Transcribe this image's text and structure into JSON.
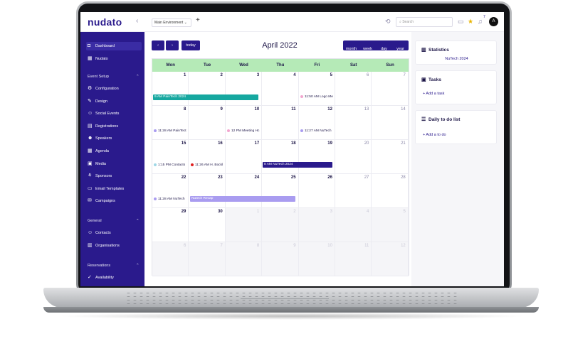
{
  "app": {
    "logo": "nudato",
    "environment": "Main Environment",
    "search_placeholder": "Search",
    "avatar_initial": "A",
    "notification_count": "7"
  },
  "sidebar": {
    "top_items": [
      {
        "label": "Dashboard",
        "icon": "dashboard-icon",
        "active": true
      },
      {
        "label": "Nudato",
        "icon": "calendar-icon"
      }
    ],
    "sections": [
      {
        "title": "Event Setup",
        "items": [
          "Configuration",
          "Design",
          "Social Events",
          "Registrations",
          "Speakers",
          "Agenda",
          "Media",
          "Sponsors",
          "Email Templates",
          "Campaigns"
        ]
      },
      {
        "title": "General",
        "items": [
          "Contacts",
          "Organisations"
        ]
      },
      {
        "title": "Reservations",
        "items": [
          "Availability"
        ]
      }
    ]
  },
  "toolbar": {
    "prev": "‹",
    "next": "›",
    "today": "today",
    "title": "April 2022",
    "views": [
      "month",
      "week",
      "day",
      "year"
    ]
  },
  "calendar": {
    "days": [
      "Mon",
      "Tue",
      "Wed",
      "Thu",
      "Fri",
      "Sat",
      "Sun"
    ],
    "weeks": [
      [
        "1",
        "2",
        "3",
        "4",
        "5",
        "6",
        "7"
      ],
      [
        "8",
        "9",
        "10",
        "11",
        "12",
        "13",
        "14"
      ],
      [
        "15",
        "16",
        "17",
        "18",
        "19",
        "20",
        "21"
      ],
      [
        "22",
        "23",
        "24",
        "25",
        "26",
        "27",
        "28"
      ],
      [
        "29",
        "30",
        "1",
        "2",
        "3",
        "4",
        "5"
      ],
      [
        "6",
        "7",
        "8",
        "9",
        "10",
        "11",
        "12"
      ]
    ],
    "events": {
      "w0_bar": "9 AM PainTech 2024",
      "w0_fri": "11:50 AM Logo Me",
      "w1_mon": "11:28 AM PainTect",
      "w1_wed": "12 PM Meeting Hc",
      "w1_fri": "11:27 AM NuTech",
      "w2_mon": "1:15 PM Contacts",
      "w2_tue": "11:26 AM H. Bockl",
      "w2_bar": "8 AM NuTech 2024",
      "w3_mon": "11:28 AM NuTech",
      "w3_bar": "Nutech Recap"
    },
    "colors": {
      "header": "#b5eab7",
      "teal": "#16a8a0",
      "navy": "#2a1a8c",
      "lavender": "#a99cf0"
    }
  },
  "panels": {
    "statistics": {
      "title": "Statistics",
      "subtitle": "NuTech 2024"
    },
    "tasks": {
      "title": "Tasks",
      "add": "+ Add a task"
    },
    "todo": {
      "title": "Daily to do list",
      "add": "+ Add a to do"
    }
  }
}
